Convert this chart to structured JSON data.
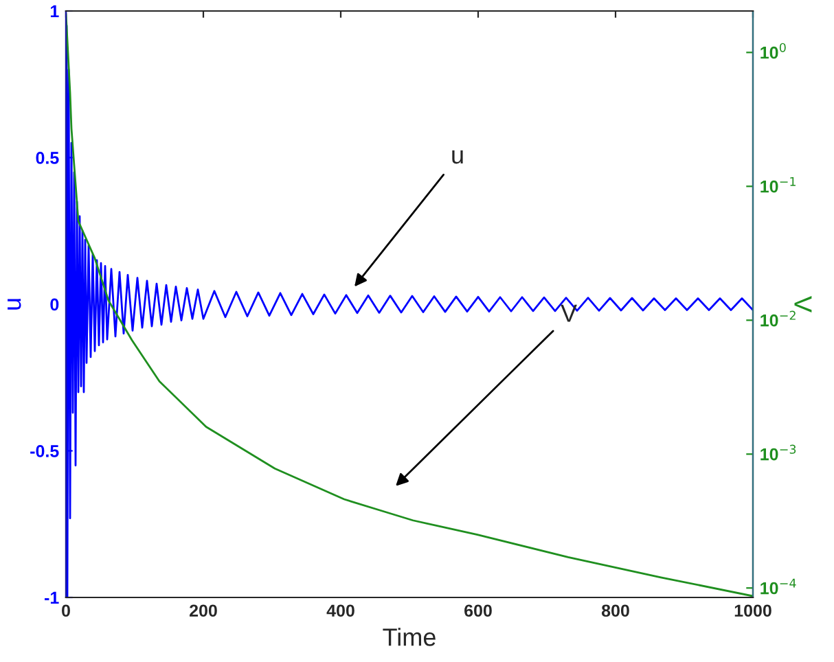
{
  "chart_data": {
    "type": "line",
    "xlabel": "Time",
    "ylabel": "u",
    "y2label": "V",
    "xlim": [
      0,
      1000
    ],
    "xticks": [
      0,
      200,
      400,
      600,
      800,
      1000
    ],
    "ylim": [
      -1,
      1
    ],
    "yticks": [
      -1,
      -0.5,
      0,
      0.5,
      1
    ],
    "y2lim": [
      8.5e-05,
      2.04
    ],
    "log": "y2",
    "y2ticks": [
      {
        "value": 0.0001,
        "label": "10$^{−4}$"
      },
      {
        "value": 0.001,
        "label": "10$^{−3}$"
      },
      {
        "value": 0.01,
        "label": "10$^{−2}$"
      },
      {
        "value": 0.1,
        "label": "10$^{−1}$"
      },
      {
        "value": 1,
        "label": "10$^{0}$"
      }
    ],
    "grid": false,
    "legend": false,
    "series": [
      {
        "color": "#0000ff",
        "x": [
          0,
          1,
          2,
          4,
          6,
          8,
          10,
          12,
          14,
          16,
          18,
          20,
          22,
          24,
          26,
          28,
          30,
          33,
          36,
          39,
          42,
          45,
          48,
          51,
          54,
          57,
          60,
          66,
          72,
          78,
          84,
          90,
          97,
          104,
          111,
          118,
          125,
          132,
          139,
          146,
          153,
          160,
          168,
          176,
          184,
          192,
          200,
          216,
          232,
          248,
          264,
          280,
          296,
          312,
          328,
          344,
          360,
          376,
          392,
          408,
          424,
          440,
          456,
          472,
          488,
          504,
          520,
          536,
          552,
          568,
          584,
          600,
          616,
          632,
          648,
          664,
          680,
          696,
          712,
          728,
          744,
          760,
          776,
          792,
          808,
          824,
          840,
          856,
          872,
          888,
          904,
          920,
          936,
          952,
          968,
          984,
          1000
        ],
        "values": [
          0,
          0.95,
          -1.0,
          0.8,
          -0.73,
          0.55,
          -0.37,
          0.45,
          -0.55,
          0.35,
          -0.3,
          0.3,
          -0.28,
          0.25,
          -0.3,
          0.22,
          -0.2,
          0.2,
          -0.18,
          0.17,
          -0.16,
          0.15,
          -0.14,
          0.14,
          -0.13,
          0.13,
          -0.12,
          0.12,
          -0.11,
          0.11,
          -0.1,
          0.1,
          -0.09,
          0.09,
          -0.08,
          0.08,
          -0.075,
          0.07,
          -0.07,
          0.065,
          -0.06,
          0.06,
          -0.055,
          0.055,
          -0.05,
          0.05,
          -0.05,
          0.045,
          -0.044,
          0.042,
          -0.041,
          0.04,
          -0.039,
          0.038,
          -0.037,
          0.035,
          -0.034,
          0.033,
          -0.032,
          0.031,
          -0.03,
          0.03,
          -0.029,
          0.029,
          -0.028,
          0.028,
          -0.027,
          0.027,
          -0.026,
          0.026,
          -0.025,
          0.025,
          -0.025,
          0.024,
          -0.024,
          0.024,
          -0.023,
          0.023,
          -0.023,
          0.022,
          -0.022,
          0.022,
          -0.022,
          0.021,
          -0.021,
          0.021,
          -0.021,
          0.02,
          -0.02,
          0.02,
          -0.02,
          0.02,
          -0.02,
          0.02,
          -0.02,
          0.02,
          -0.02
        ]
      },
      {
        "color": "#1f8f1f",
        "axis": "y2",
        "x": [
          0,
          6,
          8,
          18,
          42,
          62,
          96,
          136,
          204,
          304,
          405,
          465,
          505,
          599,
          731,
          866,
          1000
        ],
        "values": [
          1.95,
          0.5,
          0.27,
          0.055,
          0.029,
          0.014,
          0.0071,
          0.0035,
          0.0016,
          0.00078,
          0.00046,
          0.00037,
          0.00032,
          0.00025,
          0.00017,
          0.00012,
          8.7e-05
        ]
      }
    ],
    "annotations": [
      "u",
      "V"
    ]
  }
}
